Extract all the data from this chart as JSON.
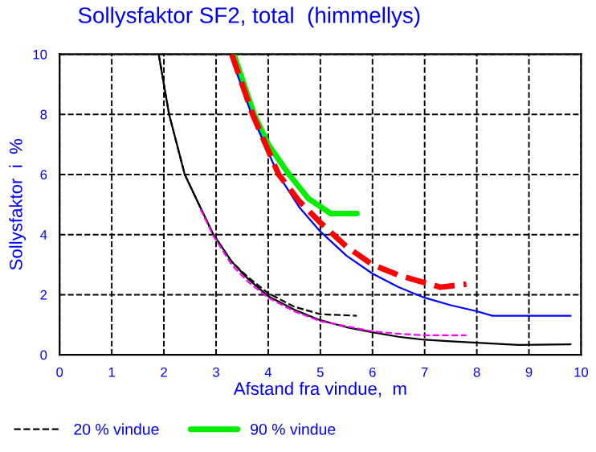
{
  "chart_data": {
    "type": "line",
    "title": "Sollysfaktor SF2, total  (himmellys)",
    "xlabel": "Afstand fra vindue,  m",
    "ylabel": "Sollysfaktor  i  %",
    "xlim": [
      0,
      10
    ],
    "ylim": [
      0,
      10
    ],
    "xticks": [
      0,
      1,
      2,
      3,
      4,
      5,
      6,
      7,
      8,
      9,
      10
    ],
    "yticks": [
      0,
      2,
      4,
      6,
      8,
      10
    ],
    "grid": true,
    "legend": "bottom",
    "series": [
      {
        "name": "20 % vindue",
        "color": "#000000",
        "line_style": "dashed",
        "x": [
          1.9,
          2.1,
          2.4,
          2.7,
          2.95,
          3.3,
          3.6,
          4.0,
          4.5,
          5.0,
          5.7
        ],
        "values": [
          10,
          8,
          6,
          4.9,
          4,
          3.1,
          2.6,
          2.05,
          1.6,
          1.35,
          1.3
        ]
      },
      {
        "name": "90 % vindue",
        "color": "#00ee00",
        "line_style": "solid",
        "x": [
          3.34,
          3.73,
          4.0,
          4.4,
          4.77,
          5.2,
          5.7
        ],
        "values": [
          10,
          8,
          7,
          6,
          5.2,
          4.7,
          4.7
        ]
      },
      {
        "color": "#ff0000",
        "line_style": "dashed",
        "x": [
          3.3,
          3.7,
          4.2,
          4.6,
          5.0,
          5.5,
          6.0,
          6.5,
          7.0,
          7.3,
          7.8
        ],
        "values": [
          10,
          8,
          6,
          5.1,
          4.4,
          3.6,
          3.0,
          2.65,
          2.4,
          2.25,
          2.35
        ]
      },
      {
        "color": "#0000ff",
        "line_style": "solid",
        "x": [
          3.27,
          3.68,
          4.19,
          4.6,
          5.0,
          5.5,
          6.0,
          6.5,
          7.0,
          7.5,
          8.0,
          8.3,
          9.8
        ],
        "values": [
          10,
          8,
          6,
          4.9,
          4.1,
          3.3,
          2.7,
          2.25,
          1.9,
          1.65,
          1.45,
          1.3,
          1.3
        ]
      },
      {
        "color": "#ff00ff",
        "line_style": "dashed",
        "x": [
          2.7,
          2.95,
          3.3,
          3.6,
          4.0,
          4.5,
          5.0,
          5.5,
          6.0,
          6.5,
          7.0,
          7.8
        ],
        "values": [
          4.85,
          3.95,
          3.0,
          2.45,
          1.9,
          1.45,
          1.12,
          0.95,
          0.78,
          0.7,
          0.65,
          0.65
        ]
      },
      {
        "color": "#000000",
        "line_style": "solid",
        "x": [
          1.9,
          2.1,
          2.4,
          2.7,
          2.95,
          3.3,
          3.6,
          4.0,
          4.5,
          5.0,
          5.5,
          6.0,
          6.5,
          7.0,
          7.5,
          8.0,
          8.8,
          9.8
        ],
        "values": [
          10,
          8,
          6,
          4.9,
          4,
          3.1,
          2.55,
          1.95,
          1.5,
          1.15,
          0.92,
          0.75,
          0.6,
          0.5,
          0.45,
          0.4,
          0.33,
          0.35
        ]
      }
    ]
  }
}
